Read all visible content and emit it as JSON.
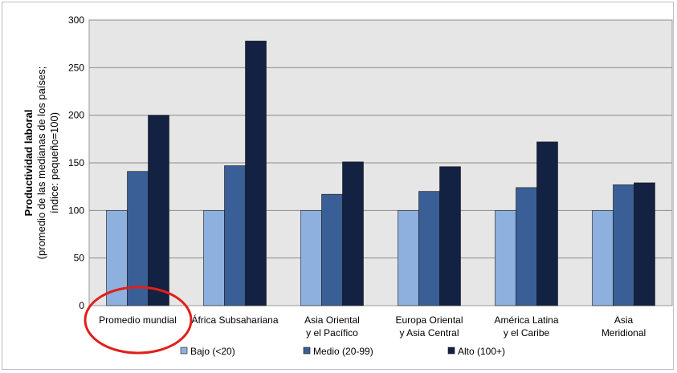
{
  "chart_data": {
    "type": "bar",
    "categories": [
      [
        "Promedio mundial"
      ],
      [
        "África Subsahariana"
      ],
      [
        "Asia Oriental",
        "y el Pacífico"
      ],
      [
        "Europa Oriental",
        "y Asia Central"
      ],
      [
        "América Latina",
        "y el Caribe"
      ],
      [
        "Asia",
        "Meridional"
      ]
    ],
    "series": [
      {
        "name": "Bajo (<20)",
        "color": "#8db0df",
        "values": [
          100,
          100,
          100,
          100,
          100,
          100
        ]
      },
      {
        "name": "Medio (20-99)",
        "color": "#3a5f96",
        "values": [
          141,
          147,
          117,
          120,
          124,
          127
        ]
      },
      {
        "name": "Alto (100+)",
        "color": "#132143",
        "values": [
          200,
          278,
          151,
          146,
          172,
          129
        ]
      }
    ],
    "ylabel": [
      "Productividad laboral",
      "(promedio de las medianas de los países;",
      "índice: pequeño=100)"
    ],
    "ylim": [
      0,
      300
    ],
    "yticks": [
      0,
      50,
      100,
      150,
      200,
      250,
      300
    ],
    "grid": true,
    "plot_background": "#e6e6e6",
    "legend_position": "bottom",
    "annotation": {
      "type": "ellipse",
      "color": "#e0201b",
      "target": "Promedio mundial"
    }
  }
}
